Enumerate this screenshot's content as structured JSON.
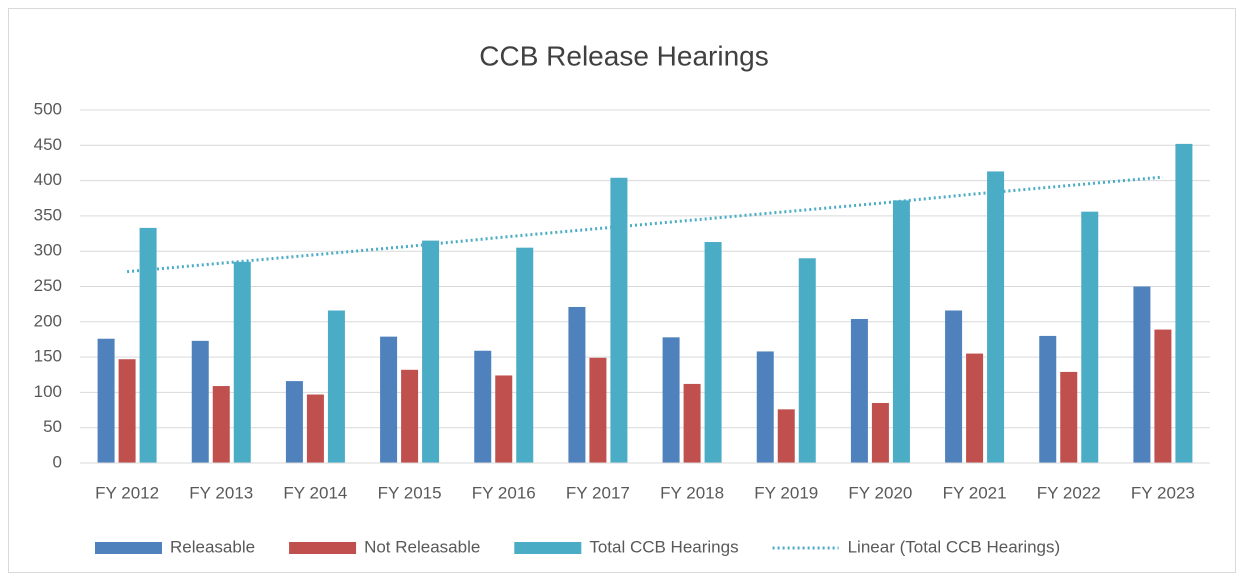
{
  "chart_data": {
    "type": "bar",
    "title": "CCB Release Hearings",
    "categories": [
      "FY 2012",
      "FY 2013",
      "FY 2014",
      "FY 2015",
      "FY 2016",
      "FY 2017",
      "FY 2018",
      "FY 2019",
      "FY 2020",
      "FY 2021",
      "FY 2022",
      "FY 2023"
    ],
    "series": [
      {
        "name": "Releasable",
        "color": "#4f81bd",
        "values": [
          176,
          173,
          116,
          179,
          159,
          221,
          178,
          158,
          204,
          216,
          180,
          250
        ]
      },
      {
        "name": "Not Releasable",
        "color": "#c0504d",
        "values": [
          147,
          109,
          97,
          132,
          124,
          149,
          112,
          76,
          85,
          155,
          129,
          189
        ]
      },
      {
        "name": "Total CCB Hearings",
        "color": "#4bacc6",
        "values": [
          333,
          285,
          216,
          315,
          305,
          404,
          313,
          290,
          372,
          413,
          356,
          452
        ]
      },
      {
        "name": "Linear (Total CCB Hearings)",
        "color": "#4bacc6",
        "style": "dotted",
        "values": [
          271,
          283,
          295,
          307,
          320,
          332,
          344,
          356,
          368,
          381,
          393,
          405
        ]
      }
    ],
    "ylim": [
      0,
      500
    ],
    "yticks": [
      0,
      50,
      100,
      150,
      200,
      250,
      300,
      350,
      400,
      450,
      500
    ],
    "grid": true,
    "legend": "bottom"
  }
}
